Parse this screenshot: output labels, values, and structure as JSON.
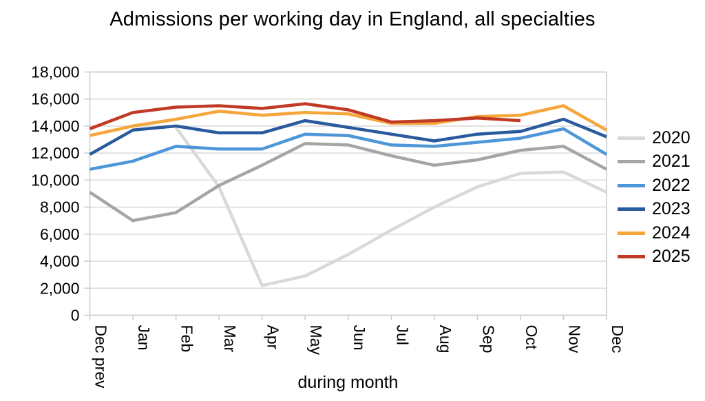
{
  "chart_data": {
    "type": "line",
    "title": "Admissions per working day in England, all specialties",
    "xlabel": "during month",
    "ylabel": "",
    "categories": [
      "Dec prev",
      "Jan",
      "Feb",
      "Mar",
      "Apr",
      "May",
      "Jun",
      "Jul",
      "Aug",
      "Sep",
      "Oct",
      "Nov",
      "Dec"
    ],
    "x_tick_rotation": 90,
    "ylim": [
      0,
      18000
    ],
    "yticks": [
      {
        "value": 0,
        "label": "0"
      },
      {
        "value": 2000,
        "label": "2,000"
      },
      {
        "value": 4000,
        "label": "4,000"
      },
      {
        "value": 6000,
        "label": "6,000"
      },
      {
        "value": 8000,
        "label": "8,000"
      },
      {
        "value": 10000,
        "label": "10,000"
      },
      {
        "value": 12000,
        "label": "12,000"
      },
      {
        "value": 14000,
        "label": "14,000"
      },
      {
        "value": 16000,
        "label": "16,000"
      },
      {
        "value": 18000,
        "label": "18,000"
      }
    ],
    "grid": "horizontal",
    "legend_position": "right",
    "series": [
      {
        "name": "2020",
        "color": "#D9D9D9",
        "values": [
          null,
          null,
          13900,
          9500,
          2200,
          2900,
          4500,
          6300,
          8000,
          9500,
          10500,
          10600,
          9100
        ]
      },
      {
        "name": "2021",
        "color": "#A5A5A5",
        "values": [
          9100,
          7000,
          7600,
          9600,
          11100,
          12700,
          12600,
          11800,
          11100,
          11500,
          12200,
          12500,
          10800
        ]
      },
      {
        "name": "2022",
        "color": "#4D97D8",
        "values": [
          10800,
          11400,
          12500,
          12300,
          12300,
          13400,
          13300,
          12600,
          12500,
          12800,
          13100,
          13800,
          11900
        ]
      },
      {
        "name": "2023",
        "color": "#2A5A9E",
        "values": [
          11900,
          13700,
          14000,
          13500,
          13500,
          14400,
          13900,
          13400,
          12900,
          13400,
          13600,
          14500,
          13200
        ]
      },
      {
        "name": "2024",
        "color": "#F5A63C",
        "values": [
          13300,
          14000,
          14500,
          15100,
          14800,
          15000,
          14900,
          14200,
          14200,
          14700,
          14800,
          15500,
          13700
        ]
      },
      {
        "name": "2025",
        "color": "#C13A26",
        "values": [
          13800,
          15000,
          15400,
          15500,
          15300,
          15650,
          15200,
          14300,
          14400,
          14600,
          14400,
          null,
          null
        ]
      }
    ],
    "axis_color": "#C9C9C9",
    "gridline_color": "#D9D9D9",
    "line_width": 4.5
  }
}
